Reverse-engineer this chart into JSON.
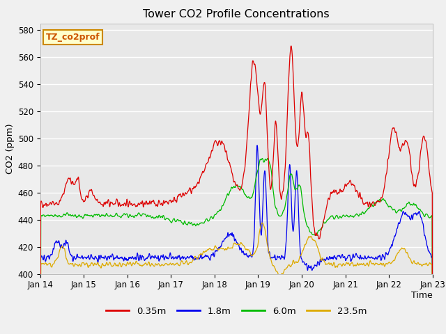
{
  "title": "Tower CO2 Profile Concentrations",
  "xlabel": "Time",
  "ylabel": "CO2 (ppm)",
  "ylim": [
    400,
    585
  ],
  "yticks": [
    400,
    420,
    440,
    460,
    480,
    500,
    520,
    540,
    560,
    580
  ],
  "xtick_labels": [
    "Jan 14",
    "Jan 15",
    "Jan 16",
    "Jan 17",
    "Jan 18",
    "Jan 19",
    "Jan 20",
    "Jan 21",
    "Jan 22",
    "Jan 23"
  ],
  "xtick_positions": [
    0,
    1,
    2,
    3,
    4,
    5,
    6,
    7,
    8,
    9
  ],
  "annotation_text": "TZ_co2prof",
  "annotation_bg": "#ffffcc",
  "annotation_edge": "#cc8800",
  "legend_labels": [
    "0.35m",
    "1.8m",
    "6.0m",
    "23.5m"
  ],
  "line_colors": [
    "#dd0000",
    "#0000ee",
    "#00bb00",
    "#ddaa00"
  ],
  "bg_color": "#e8e8e8",
  "n_points": 2160,
  "days": 9
}
